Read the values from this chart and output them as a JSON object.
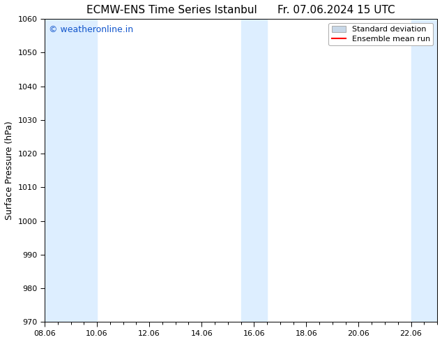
{
  "title_left": "ECMW-ENS Time Series Istanbul",
  "title_right": "Fr. 07.06.2024 15 UTC",
  "ylabel": "Surface Pressure (hPa)",
  "ylim": [
    970,
    1060
  ],
  "yticks": [
    970,
    980,
    990,
    1000,
    1010,
    1020,
    1030,
    1040,
    1050,
    1060
  ],
  "xlim": [
    0,
    15
  ],
  "xtick_labels": [
    "08.06",
    "10.06",
    "12.06",
    "14.06",
    "16.06",
    "18.06",
    "20.06",
    "22.06"
  ],
  "xtick_positions": [
    0,
    2,
    4,
    6,
    8,
    10,
    12,
    14
  ],
  "shaded_bands": [
    {
      "x_start": 0.0,
      "x_end": 2.0
    },
    {
      "x_start": 7.5,
      "x_end": 8.5
    },
    {
      "x_start": 14.0,
      "x_end": 15.0
    }
  ],
  "band_color": "#ddeeff",
  "background_color": "#ffffff",
  "plot_bg_color": "#ffffff",
  "legend_std_color": "#c8d8e8",
  "legend_std_edge": "#aaaaaa",
  "legend_mean_color": "#ff0000",
  "watermark_text": "© weatheronline.in",
  "watermark_color": "#1155cc",
  "title_fontsize": 11,
  "label_fontsize": 9,
  "tick_fontsize": 8,
  "watermark_fontsize": 9,
  "legend_fontsize": 8
}
